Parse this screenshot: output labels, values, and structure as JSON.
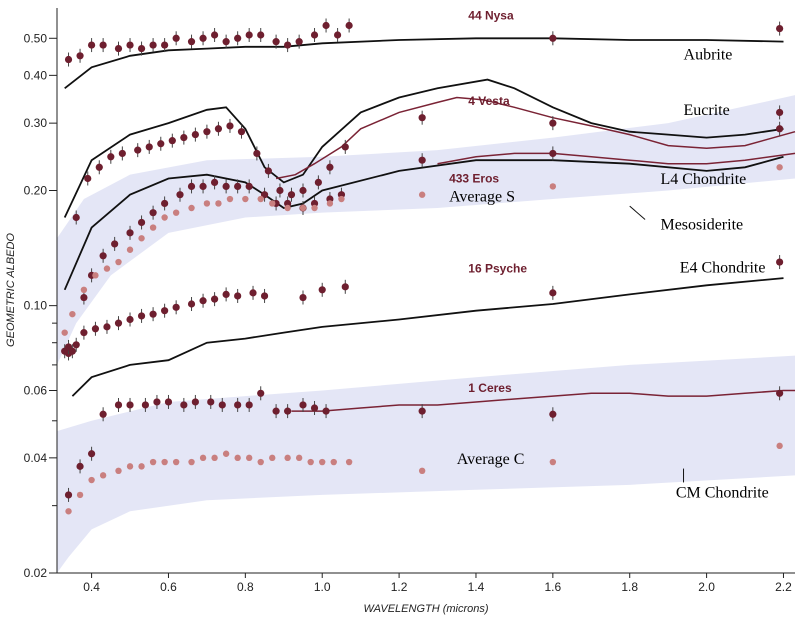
{
  "chart_data": {
    "type": "scatter",
    "title": "",
    "xlabel": "WAVELENGTH (microns)",
    "ylabel": "GEOMETRIC ALBEDO",
    "xlim": [
      0.31,
      2.23
    ],
    "ylim": [
      0.02,
      0.6
    ],
    "y_scale": "log",
    "grid": false,
    "x_ticks": [
      {
        "v": 0.4,
        "label": "0.4"
      },
      {
        "v": 0.6,
        "label": "0.6"
      },
      {
        "v": 0.8,
        "label": "0.8"
      },
      {
        "v": 1.0,
        "label": "1.0"
      },
      {
        "v": 1.2,
        "label": "1.2"
      },
      {
        "v": 1.4,
        "label": "1.4"
      },
      {
        "v": 1.6,
        "label": "1.6"
      },
      {
        "v": 1.8,
        "label": "1.8"
      },
      {
        "v": 2.0,
        "label": "2.0"
      },
      {
        "v": 2.2,
        "label": "2.2"
      }
    ],
    "y_ticks": [
      {
        "v": 0.02,
        "label": "0.02"
      },
      {
        "v": 0.04,
        "label": "0.04"
      },
      {
        "v": 0.06,
        "label": "0.06"
      },
      {
        "v": 0.1,
        "label": "0.10"
      },
      {
        "v": 0.2,
        "label": "0.20"
      },
      {
        "v": 0.3,
        "label": "0.30"
      },
      {
        "v": 0.4,
        "label": "0.40"
      },
      {
        "v": 0.5,
        "label": "0.50"
      }
    ],
    "y_minor_ticks": [
      0.03,
      0.05,
      0.07,
      0.08,
      0.09
    ],
    "colors": {
      "asteroid": "#6e1f2f",
      "average": "#c97f7f",
      "meteorite": "#111111",
      "vesta_line": "#7a2335",
      "band": "#dfe2f4"
    },
    "bands": [
      {
        "name": "S-type range",
        "upper": [
          [
            0.31,
            0.15
          ],
          [
            0.38,
            0.19
          ],
          [
            0.5,
            0.22
          ],
          [
            0.7,
            0.24
          ],
          [
            1.0,
            0.245
          ],
          [
            1.3,
            0.255
          ],
          [
            1.6,
            0.275
          ],
          [
            1.9,
            0.3
          ],
          [
            2.23,
            0.355
          ]
        ],
        "lower": [
          [
            0.31,
            0.07
          ],
          [
            0.36,
            0.09
          ],
          [
            0.45,
            0.12
          ],
          [
            0.6,
            0.155
          ],
          [
            0.8,
            0.17
          ],
          [
            1.0,
            0.175
          ],
          [
            1.3,
            0.18
          ],
          [
            1.6,
            0.19
          ],
          [
            1.9,
            0.2
          ],
          [
            2.23,
            0.215
          ]
        ]
      },
      {
        "name": "C-type range",
        "upper": [
          [
            0.31,
            0.047
          ],
          [
            0.4,
            0.05
          ],
          [
            0.6,
            0.056
          ],
          [
            0.8,
            0.058
          ],
          [
            1.0,
            0.06
          ],
          [
            1.4,
            0.065
          ],
          [
            1.8,
            0.07
          ],
          [
            2.23,
            0.074
          ]
        ],
        "lower": [
          [
            0.31,
            0.02
          ],
          [
            0.34,
            0.022
          ],
          [
            0.4,
            0.026
          ],
          [
            0.5,
            0.029
          ],
          [
            0.7,
            0.031
          ],
          [
            1.0,
            0.032
          ],
          [
            1.4,
            0.033
          ],
          [
            1.8,
            0.034
          ],
          [
            2.23,
            0.036
          ]
        ]
      }
    ],
    "series": [
      {
        "name": "44 Nysa",
        "kind": "points",
        "color": "#6e1f2f",
        "x": [
          0.34,
          0.37,
          0.4,
          0.43,
          0.47,
          0.5,
          0.53,
          0.56,
          0.59,
          0.62,
          0.66,
          0.69,
          0.72,
          0.75,
          0.78,
          0.81,
          0.84,
          0.88,
          0.91,
          0.94,
          0.98,
          1.01,
          1.04,
          1.07,
          1.6,
          2.19
        ],
        "y": [
          0.44,
          0.45,
          0.48,
          0.48,
          0.47,
          0.48,
          0.47,
          0.48,
          0.48,
          0.5,
          0.49,
          0.5,
          0.51,
          0.49,
          0.5,
          0.51,
          0.51,
          0.49,
          0.48,
          0.49,
          0.51,
          0.54,
          0.51,
          0.54,
          0.5,
          0.53
        ]
      },
      {
        "name": "4 Vesta",
        "kind": "points",
        "color": "#6e1f2f",
        "x": [
          0.36,
          0.39,
          0.42,
          0.45,
          0.48,
          0.52,
          0.55,
          0.58,
          0.61,
          0.64,
          0.67,
          0.7,
          0.73,
          0.76,
          0.79,
          0.83,
          0.86,
          0.89,
          0.92,
          0.95,
          0.99,
          1.02,
          1.06,
          1.26,
          1.6,
          2.19,
          2.19
        ],
        "y": [
          0.17,
          0.215,
          0.23,
          0.245,
          0.25,
          0.255,
          0.26,
          0.265,
          0.27,
          0.275,
          0.28,
          0.285,
          0.29,
          0.295,
          0.285,
          0.25,
          0.225,
          0.2,
          0.195,
          0.2,
          0.21,
          0.23,
          0.26,
          0.31,
          0.3,
          0.32,
          0.29
        ]
      },
      {
        "name": "433 Eros",
        "kind": "points",
        "color": "#6e1f2f",
        "x": [
          0.34,
          0.38,
          0.4,
          0.43,
          0.46,
          0.5,
          0.53,
          0.56,
          0.59,
          0.63,
          0.66,
          0.69,
          0.72,
          0.75,
          0.78,
          0.81,
          0.85,
          0.88,
          0.91,
          0.95,
          0.98,
          1.02,
          1.05,
          1.26,
          1.6
        ],
        "y": [
          0.075,
          0.105,
          0.12,
          0.135,
          0.145,
          0.155,
          0.165,
          0.175,
          0.185,
          0.195,
          0.205,
          0.205,
          0.21,
          0.205,
          0.205,
          0.205,
          0.195,
          0.185,
          0.185,
          0.18,
          0.185,
          0.19,
          0.195,
          0.24,
          0.25
        ]
      },
      {
        "name": "Average S",
        "kind": "points",
        "color": "#c97f7f",
        "x": [
          0.33,
          0.35,
          0.38,
          0.41,
          0.44,
          0.47,
          0.5,
          0.53,
          0.56,
          0.59,
          0.62,
          0.66,
          0.7,
          0.73,
          0.76,
          0.8,
          0.84,
          0.87,
          0.91,
          0.95,
          0.98,
          1.02,
          1.05,
          1.26,
          1.6,
          2.19
        ],
        "y": [
          0.085,
          0.095,
          0.11,
          0.12,
          0.125,
          0.13,
          0.14,
          0.15,
          0.16,
          0.17,
          0.175,
          0.18,
          0.185,
          0.185,
          0.19,
          0.19,
          0.19,
          0.185,
          0.18,
          0.18,
          0.18,
          0.185,
          0.19,
          0.195,
          0.205,
          0.23
        ]
      },
      {
        "name": "16 Psyche",
        "kind": "points",
        "color": "#6e1f2f",
        "x": [
          0.33,
          0.34,
          0.35,
          0.36,
          0.38,
          0.41,
          0.44,
          0.47,
          0.5,
          0.53,
          0.56,
          0.59,
          0.62,
          0.66,
          0.69,
          0.72,
          0.75,
          0.78,
          0.82,
          0.85,
          0.95,
          1.0,
          1.06,
          1.6,
          2.19
        ],
        "y": [
          0.076,
          0.078,
          0.076,
          0.079,
          0.085,
          0.087,
          0.088,
          0.09,
          0.092,
          0.094,
          0.095,
          0.097,
          0.099,
          0.101,
          0.103,
          0.104,
          0.107,
          0.106,
          0.108,
          0.106,
          0.105,
          0.11,
          0.112,
          0.108,
          0.13
        ]
      },
      {
        "name": "1 Ceres",
        "kind": "points",
        "color": "#6e1f2f",
        "x": [
          0.34,
          0.37,
          0.4,
          0.43,
          0.47,
          0.5,
          0.54,
          0.57,
          0.6,
          0.64,
          0.67,
          0.71,
          0.74,
          0.78,
          0.81,
          0.84,
          0.88,
          0.91,
          0.95,
          0.98,
          1.01,
          1.26,
          1.6,
          2.19
        ],
        "y": [
          0.032,
          0.038,
          0.041,
          0.052,
          0.055,
          0.055,
          0.055,
          0.056,
          0.056,
          0.055,
          0.056,
          0.056,
          0.055,
          0.055,
          0.055,
          0.059,
          0.053,
          0.053,
          0.055,
          0.054,
          0.053,
          0.053,
          0.052,
          0.059
        ]
      },
      {
        "name": "Average C",
        "kind": "points",
        "color": "#c97f7f",
        "x": [
          0.34,
          0.37,
          0.4,
          0.43,
          0.47,
          0.5,
          0.53,
          0.56,
          0.59,
          0.62,
          0.66,
          0.69,
          0.72,
          0.75,
          0.78,
          0.81,
          0.84,
          0.87,
          0.91,
          0.94,
          0.97,
          1.0,
          1.03,
          1.07,
          1.26,
          1.6,
          2.19
        ],
        "y": [
          0.029,
          0.032,
          0.035,
          0.036,
          0.037,
          0.038,
          0.038,
          0.039,
          0.039,
          0.039,
          0.039,
          0.04,
          0.04,
          0.041,
          0.04,
          0.04,
          0.039,
          0.04,
          0.04,
          0.04,
          0.039,
          0.039,
          0.039,
          0.039,
          0.037,
          0.039,
          0.043
        ]
      },
      {
        "name": "Aubrite",
        "kind": "line",
        "color": "#111111",
        "x": [
          0.33,
          0.4,
          0.5,
          0.6,
          0.7,
          0.8,
          0.9,
          1.0,
          1.2,
          1.4,
          1.6,
          1.8,
          2.0,
          2.2
        ],
        "y": [
          0.37,
          0.42,
          0.45,
          0.465,
          0.47,
          0.475,
          0.475,
          0.485,
          0.495,
          0.5,
          0.5,
          0.495,
          0.495,
          0.49
        ]
      },
      {
        "name": "Eucrite",
        "kind": "line",
        "color": "#111111",
        "x": [
          0.33,
          0.4,
          0.5,
          0.6,
          0.7,
          0.75,
          0.8,
          0.85,
          0.9,
          0.95,
          1.0,
          1.1,
          1.2,
          1.3,
          1.43,
          1.5,
          1.6,
          1.7,
          1.8,
          1.9,
          2.0,
          2.1,
          2.2
        ],
        "y": [
          0.17,
          0.24,
          0.28,
          0.3,
          0.325,
          0.33,
          0.29,
          0.23,
          0.21,
          0.22,
          0.26,
          0.32,
          0.35,
          0.37,
          0.39,
          0.37,
          0.33,
          0.3,
          0.285,
          0.28,
          0.275,
          0.28,
          0.29
        ]
      },
      {
        "name": "Vesta spectrum",
        "kind": "line",
        "color": "#7a2335",
        "x": [
          0.88,
          0.93,
          0.98,
          1.05,
          1.1,
          1.2,
          1.3,
          1.35,
          1.42,
          1.5,
          1.6,
          1.7,
          1.8,
          1.9,
          2.0,
          2.1,
          2.23
        ],
        "y": [
          0.215,
          0.22,
          0.235,
          0.26,
          0.29,
          0.32,
          0.34,
          0.35,
          0.345,
          0.33,
          0.31,
          0.295,
          0.28,
          0.262,
          0.258,
          0.262,
          0.285
        ]
      },
      {
        "name": "L4 Chondrite",
        "kind": "line",
        "color": "#111111",
        "x": [
          0.33,
          0.4,
          0.5,
          0.6,
          0.7,
          0.8,
          0.85,
          0.9,
          0.95,
          1.0,
          1.2,
          1.4,
          1.6,
          1.8,
          2.0,
          2.1,
          2.2
        ],
        "y": [
          0.11,
          0.16,
          0.195,
          0.215,
          0.22,
          0.21,
          0.195,
          0.18,
          0.185,
          0.2,
          0.225,
          0.24,
          0.24,
          0.235,
          0.225,
          0.23,
          0.245
        ]
      },
      {
        "name": "Eros spectrum",
        "kind": "line",
        "color": "#7a2335",
        "x": [
          1.3,
          1.4,
          1.5,
          1.6,
          1.7,
          1.8,
          1.9,
          2.0,
          2.1,
          2.23
        ],
        "y": [
          0.235,
          0.245,
          0.25,
          0.25,
          0.245,
          0.24,
          0.235,
          0.235,
          0.24,
          0.25
        ]
      },
      {
        "name": "E4 Chondrite",
        "kind": "line",
        "color": "#111111",
        "x": [
          0.35,
          0.4,
          0.5,
          0.6,
          0.7,
          0.8,
          0.9,
          1.0,
          1.2,
          1.4,
          1.6,
          1.8,
          2.0,
          2.2
        ],
        "y": [
          0.058,
          0.065,
          0.07,
          0.072,
          0.08,
          0.082,
          0.085,
          0.088,
          0.092,
          0.097,
          0.101,
          0.107,
          0.113,
          0.118
        ]
      },
      {
        "name": "Ceres spectrum",
        "kind": "line",
        "color": "#7a2335",
        "x": [
          0.92,
          1.0,
          1.1,
          1.2,
          1.3,
          1.4,
          1.5,
          1.6,
          1.7,
          1.8,
          1.9,
          2.0,
          2.1,
          2.2,
          2.23
        ],
        "y": [
          0.053,
          0.053,
          0.054,
          0.055,
          0.055,
          0.056,
          0.057,
          0.058,
          0.059,
          0.059,
          0.058,
          0.058,
          0.059,
          0.06,
          0.06
        ]
      }
    ],
    "annotations": [
      {
        "text": "44 Nysa",
        "x": 1.38,
        "y": 0.56,
        "style": "asteroid"
      },
      {
        "text": "Aubrite",
        "x": 1.94,
        "y": 0.44,
        "style": "meteorite"
      },
      {
        "text": "4 Vesta",
        "x": 1.38,
        "y": 0.335,
        "style": "asteroid"
      },
      {
        "text": "Eucrite",
        "x": 1.94,
        "y": 0.315,
        "style": "meteorite"
      },
      {
        "text": "433 Eros",
        "x": 1.33,
        "y": 0.21,
        "style": "asteroid"
      },
      {
        "text": "Average S",
        "x": 1.33,
        "y": 0.187,
        "style": "average"
      },
      {
        "text": "L4 Chondrite",
        "x": 1.88,
        "y": 0.208,
        "style": "meteorite"
      },
      {
        "text": "Mesosiderite",
        "x": 1.88,
        "y": 0.158,
        "style": "meteorite"
      },
      {
        "text": "16 Psyche",
        "x": 1.38,
        "y": 0.122,
        "style": "asteroid"
      },
      {
        "text": "E4 Chondrite",
        "x": 1.93,
        "y": 0.122,
        "style": "meteorite"
      },
      {
        "text": "1 Ceres",
        "x": 1.38,
        "y": 0.0595,
        "style": "asteroid"
      },
      {
        "text": "Average C",
        "x": 1.35,
        "y": 0.0385,
        "style": "average"
      },
      {
        "text": "CM Chondrite",
        "x": 1.92,
        "y": 0.0315,
        "style": "meteorite"
      }
    ]
  }
}
